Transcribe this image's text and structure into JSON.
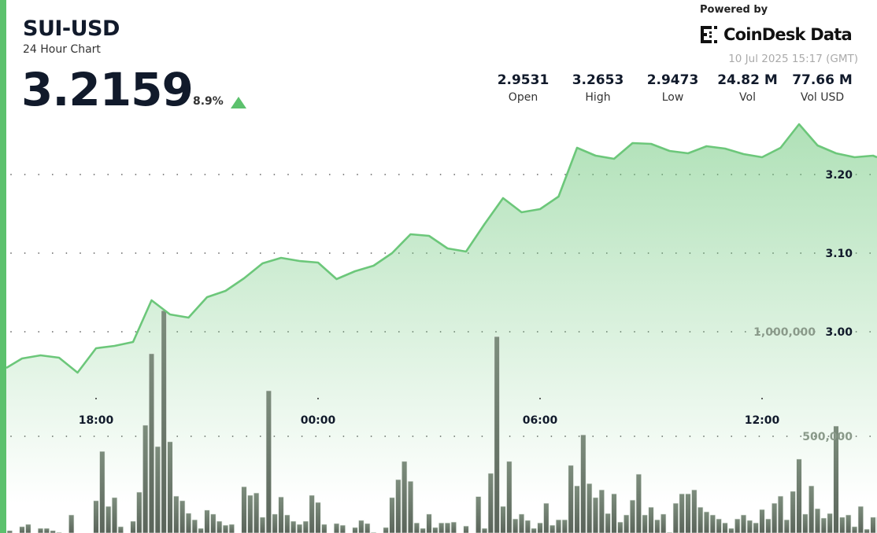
{
  "header": {
    "title": "SUI-USD",
    "subtitle": "24 Hour Chart",
    "price": "3.2159",
    "change": "8.9%",
    "change_direction": "up",
    "powered_by": "Powered by",
    "brand": "CoinDesk Data",
    "timestamp": "10 Jul 2025 15:17 (GMT)"
  },
  "stats": [
    {
      "value": "2.9531",
      "label": "Open"
    },
    {
      "value": "3.2653",
      "label": "High"
    },
    {
      "value": "2.9473",
      "label": "Low"
    },
    {
      "value": "24.82 M",
      "label": "Vol"
    },
    {
      "value": "77.66 M",
      "label": "Vol USD"
    }
  ],
  "colors": {
    "accent": "#5cc16d",
    "line": "#6cc77a",
    "bars": "#5f6b5f",
    "text": "#111a2b"
  },
  "chart_data": {
    "type": "area+bar",
    "title": "",
    "grid": "dotted horizontal",
    "x_ticks": [
      "18:00",
      "00:00",
      "06:00",
      "12:00"
    ],
    "y_ticks": [
      "3.00",
      "3.10",
      "3.20"
    ],
    "y_tick_values": [
      3.0,
      3.1,
      3.2
    ],
    "volume_ticks": [
      "1,000,000",
      "500,000"
    ],
    "volume_tick_values": [
      1000000,
      500000
    ],
    "price": {
      "times": [
        "15:30",
        "16:00",
        "16:30",
        "17:00",
        "17:30",
        "18:00",
        "18:30",
        "19:00",
        "19:30",
        "20:00",
        "20:30",
        "21:00",
        "21:30",
        "22:00",
        "22:30",
        "23:00",
        "23:30",
        "00:00",
        "00:30",
        "01:00",
        "01:30",
        "02:00",
        "02:30",
        "03:00",
        "03:30",
        "04:00",
        "04:30",
        "05:00",
        "05:30",
        "06:00",
        "06:30",
        "07:00",
        "07:30",
        "08:00",
        "08:30",
        "09:00",
        "09:30",
        "10:00",
        "10:30",
        "11:00",
        "11:30",
        "12:00",
        "12:30",
        "13:00",
        "13:30",
        "14:00",
        "14:30",
        "15:00"
      ],
      "values": [
        2.954,
        2.966,
        2.97,
        2.967,
        2.948,
        2.979,
        2.982,
        2.987,
        3.04,
        3.022,
        3.018,
        3.044,
        3.052,
        3.068,
        3.087,
        3.094,
        3.09,
        3.088,
        3.067,
        3.077,
        3.084,
        3.1,
        3.124,
        3.122,
        3.106,
        3.102,
        3.137,
        3.17,
        3.152,
        3.156,
        3.172,
        3.234,
        3.224,
        3.22,
        3.24,
        3.239,
        3.23,
        3.227,
        3.236,
        3.233,
        3.226,
        3.222,
        3.234,
        3.264,
        3.237,
        3.227,
        3.222,
        3.224
      ]
    },
    "volume": {
      "times": [
        "15:40",
        "15:50",
        "16:00",
        "16:10",
        "16:20",
        "16:30",
        "16:40",
        "16:50",
        "17:00",
        "17:10",
        "17:20",
        "17:30",
        "17:40",
        "17:50",
        "18:00",
        "18:10",
        "18:20",
        "18:30",
        "18:40",
        "18:50",
        "19:00",
        "19:10",
        "19:20",
        "19:30",
        "19:40",
        "19:50",
        "20:00",
        "20:10",
        "20:20",
        "20:30",
        "20:40",
        "20:50",
        "21:00",
        "21:10",
        "21:20",
        "21:30",
        "21:40",
        "21:50",
        "22:00",
        "22:10",
        "22:20",
        "22:30",
        "22:40",
        "22:50",
        "23:00",
        "23:10",
        "23:20",
        "23:30",
        "23:40",
        "23:50",
        "00:00",
        "00:10",
        "00:20",
        "00:30",
        "00:40",
        "00:50",
        "01:00",
        "01:10",
        "01:20",
        "01:30",
        "01:40",
        "01:50",
        "02:00",
        "02:10",
        "02:20",
        "02:30",
        "02:40",
        "02:50",
        "03:00",
        "03:10",
        "03:20",
        "03:30",
        "03:40",
        "03:50",
        "04:00",
        "04:10",
        "04:20",
        "04:30",
        "04:40",
        "04:50",
        "05:00",
        "05:10",
        "05:20",
        "05:30",
        "05:40",
        "05:50",
        "06:00",
        "06:10",
        "06:20",
        "06:30",
        "06:40",
        "06:50",
        "07:00",
        "07:10",
        "07:20",
        "07:30",
        "07:40",
        "07:50",
        "08:00",
        "08:10",
        "08:20",
        "08:30",
        "08:40",
        "08:50",
        "09:00",
        "09:10",
        "09:20",
        "09:30",
        "09:40",
        "09:50",
        "10:00",
        "10:10",
        "10:20",
        "10:30",
        "10:40",
        "10:50",
        "11:00",
        "11:10",
        "11:20",
        "11:30",
        "11:40",
        "11:50",
        "12:00",
        "12:10",
        "12:20",
        "12:30",
        "12:40",
        "12:50",
        "13:00",
        "13:10",
        "13:20",
        "13:30",
        "13:40",
        "13:50",
        "14:00",
        "14:10",
        "14:20",
        "14:30",
        "14:40",
        "14:50",
        "15:00",
        "15:10"
      ],
      "values": [
        49000,
        20000,
        68000,
        79000,
        15000,
        60000,
        60000,
        49000,
        41000,
        10000,
        124000,
        5000,
        10000,
        10000,
        192000,
        428000,
        165000,
        207000,
        68000,
        10000,
        94000,
        233000,
        553000,
        895000,
        451000,
        1101000,
        474000,
        214000,
        192000,
        132000,
        101000,
        60000,
        147000,
        128000,
        94000,
        75000,
        79000,
        10000,
        259000,
        218000,
        229000,
        113000,
        718000,
        128000,
        210000,
        124000,
        94000,
        79000,
        94000,
        218000,
        184000,
        79000,
        30000,
        83000,
        75000,
        30000,
        64000,
        98000,
        83000,
        41000,
        5000,
        64000,
        207000,
        293000,
        380000,
        285000,
        86000,
        60000,
        128000,
        64000,
        86000,
        86000,
        90000,
        5000,
        71000,
        30000,
        212000,
        60000,
        323000,
        977000,
        165000,
        380000,
        105000,
        128000,
        98000,
        60000,
        86000,
        180000,
        75000,
        101000,
        101000,
        361000,
        263000,
        507000,
        274000,
        207000,
        244000,
        131000,
        225000,
        90000,
        124000,
        195000,
        319000,
        124000,
        161000,
        101000,
        128000,
        41000,
        180000,
        225000,
        225000,
        244000,
        161000,
        139000,
        124000,
        105000,
        86000,
        60000,
        105000,
        124000,
        98000,
        86000,
        150000,
        105000,
        180000,
        214000,
        101000,
        237000,
        391000,
        128000,
        263000,
        154000,
        109000,
        131000,
        549000,
        113000,
        124000,
        68000,
        165000,
        56000,
        113000,
        113000
      ]
    }
  }
}
